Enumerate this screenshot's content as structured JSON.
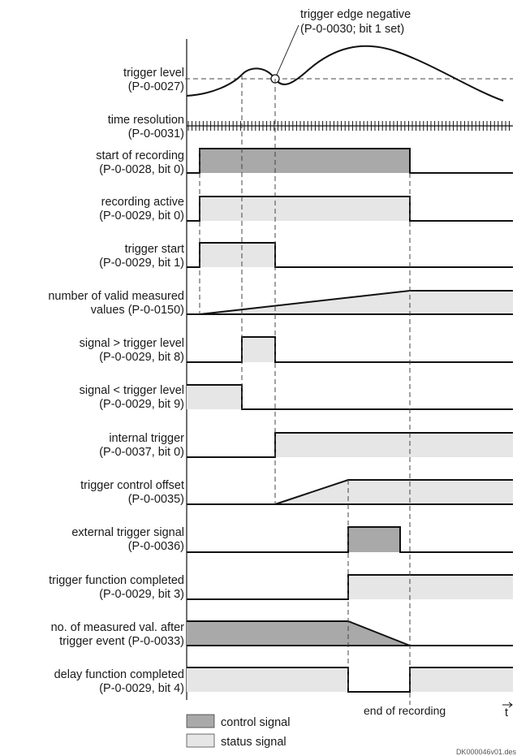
{
  "annotation": {
    "trigger_edge": [
      "trigger edge negative",
      "(P-0-0030; bit 1 set)"
    ]
  },
  "rows": [
    {
      "id": "trigger_level",
      "label": [
        "trigger level",
        "(P-0-0027)"
      ]
    },
    {
      "id": "time_resolution",
      "label": [
        "time resolution",
        "(P-0-0031)"
      ]
    },
    {
      "id": "start_of_recording",
      "label": [
        "start of recording",
        "(P-0-0028, bit 0)"
      ],
      "signal_type": "control"
    },
    {
      "id": "recording_active",
      "label": [
        "recording active",
        "(P-0-0029, bit 0)"
      ],
      "signal_type": "status"
    },
    {
      "id": "trigger_start",
      "label": [
        "trigger start",
        "(P-0-0029, bit 1)"
      ],
      "signal_type": "status"
    },
    {
      "id": "valid_measured_values",
      "label": [
        "number of valid measured",
        "values (P-0-0150)"
      ],
      "signal_type": "status"
    },
    {
      "id": "signal_gt_trigger",
      "label": [
        "signal > trigger level",
        "(P-0-0029, bit 8)"
      ],
      "signal_type": "status"
    },
    {
      "id": "signal_lt_trigger",
      "label": [
        "signal < trigger level",
        "(P-0-0029, bit 9)"
      ],
      "signal_type": "status"
    },
    {
      "id": "internal_trigger",
      "label": [
        "internal trigger",
        "(P-0-0037, bit 0)"
      ],
      "signal_type": "status"
    },
    {
      "id": "trigger_control_offset",
      "label": [
        "trigger control offset",
        "(P-0-0035)"
      ],
      "signal_type": "status"
    },
    {
      "id": "external_trigger_signal",
      "label": [
        "external trigger signal",
        "(P-0-0036)"
      ],
      "signal_type": "control"
    },
    {
      "id": "trigger_function_completed",
      "label": [
        "trigger function completed",
        "(P-0-0029, bit 3)"
      ],
      "signal_type": "status"
    },
    {
      "id": "measured_after_trigger",
      "label": [
        "no. of measured val. after",
        "trigger event (P-0-0033)"
      ],
      "signal_type": "control"
    },
    {
      "id": "delay_function_completed",
      "label": [
        "delay function completed",
        "(P-0-0029, bit 4)"
      ],
      "signal_type": "status"
    }
  ],
  "axis": {
    "end_label": "end of recording",
    "time_label": "t"
  },
  "legend": [
    {
      "label": "control signal",
      "color": "#a9a9a9"
    },
    {
      "label": "status signal",
      "color": "#e6e6e6"
    }
  ],
  "footer": "DK000046v01.des",
  "colors": {
    "control_fill": "#a9a9a9",
    "status_fill": "#e6e6e6",
    "line": "#111111"
  }
}
